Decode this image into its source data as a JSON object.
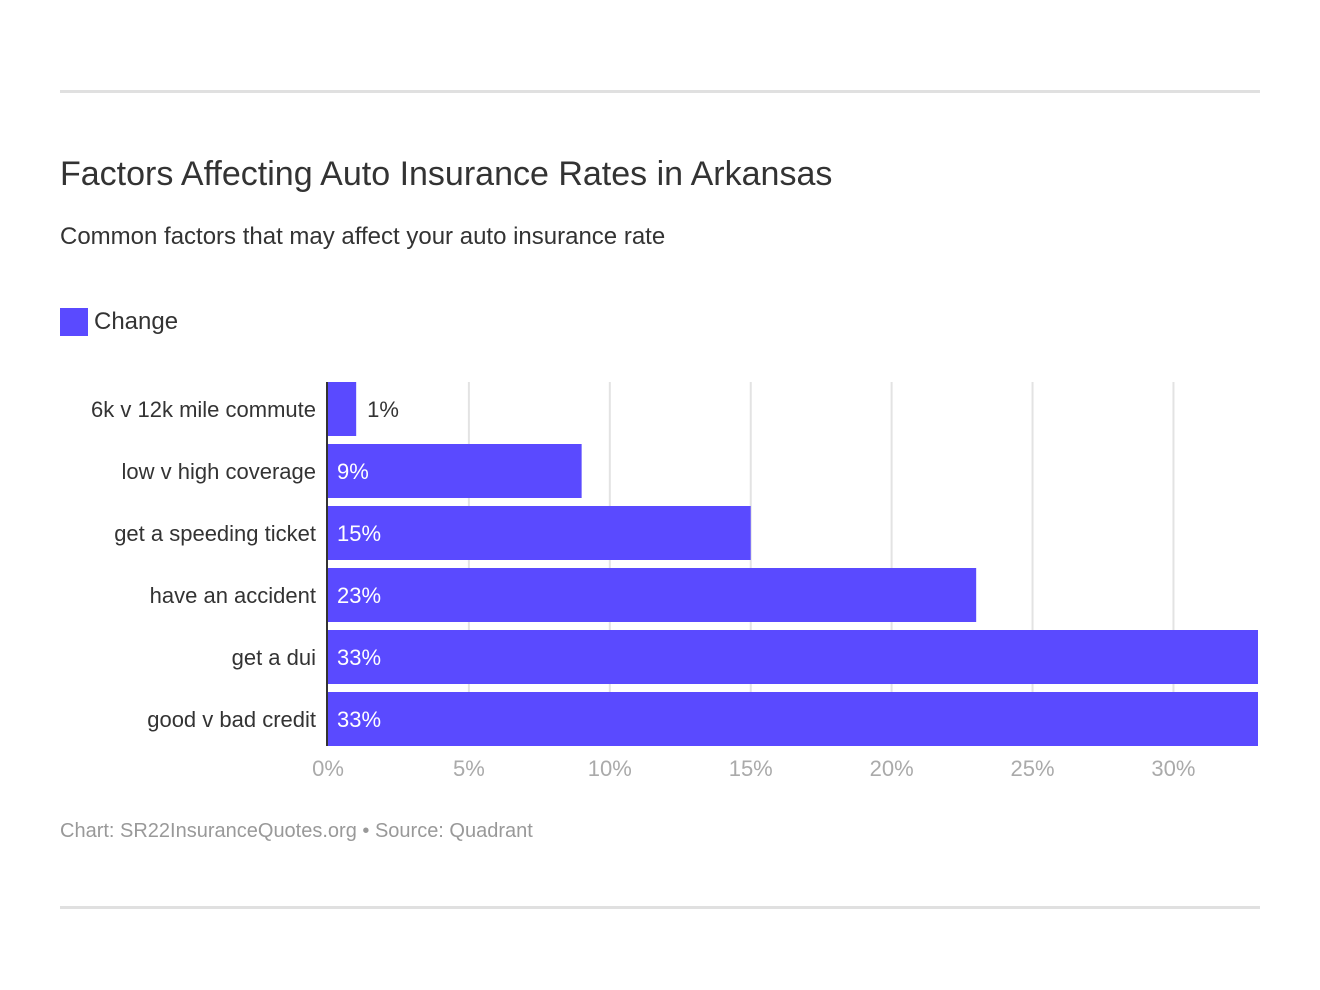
{
  "chart_data": {
    "type": "bar",
    "orientation": "horizontal",
    "title": "Factors Affecting Auto Insurance Rates in Arkansas",
    "subtitle": "Common factors that may affect your auto insurance rate",
    "categories": [
      "6k v 12k mile commute",
      "low v high coverage",
      "get a speeding ticket",
      "have an accident",
      "get a dui",
      "good v bad credit"
    ],
    "series": [
      {
        "name": "Change",
        "values": [
          1,
          9,
          15,
          23,
          33,
          33
        ],
        "color": "#5a4aff"
      }
    ],
    "data_labels": [
      "1%",
      "9%",
      "15%",
      "23%",
      "33%",
      "33%"
    ],
    "xlim": [
      0,
      33
    ],
    "x_ticks": [
      0,
      5,
      10,
      15,
      20,
      25,
      30
    ],
    "x_tick_labels": [
      "0%",
      "5%",
      "10%",
      "15%",
      "20%",
      "25%",
      "30%"
    ],
    "grid": true,
    "legend": "top-left"
  },
  "footer": "Chart: SR22InsuranceQuotes.org • Source: Quadrant"
}
